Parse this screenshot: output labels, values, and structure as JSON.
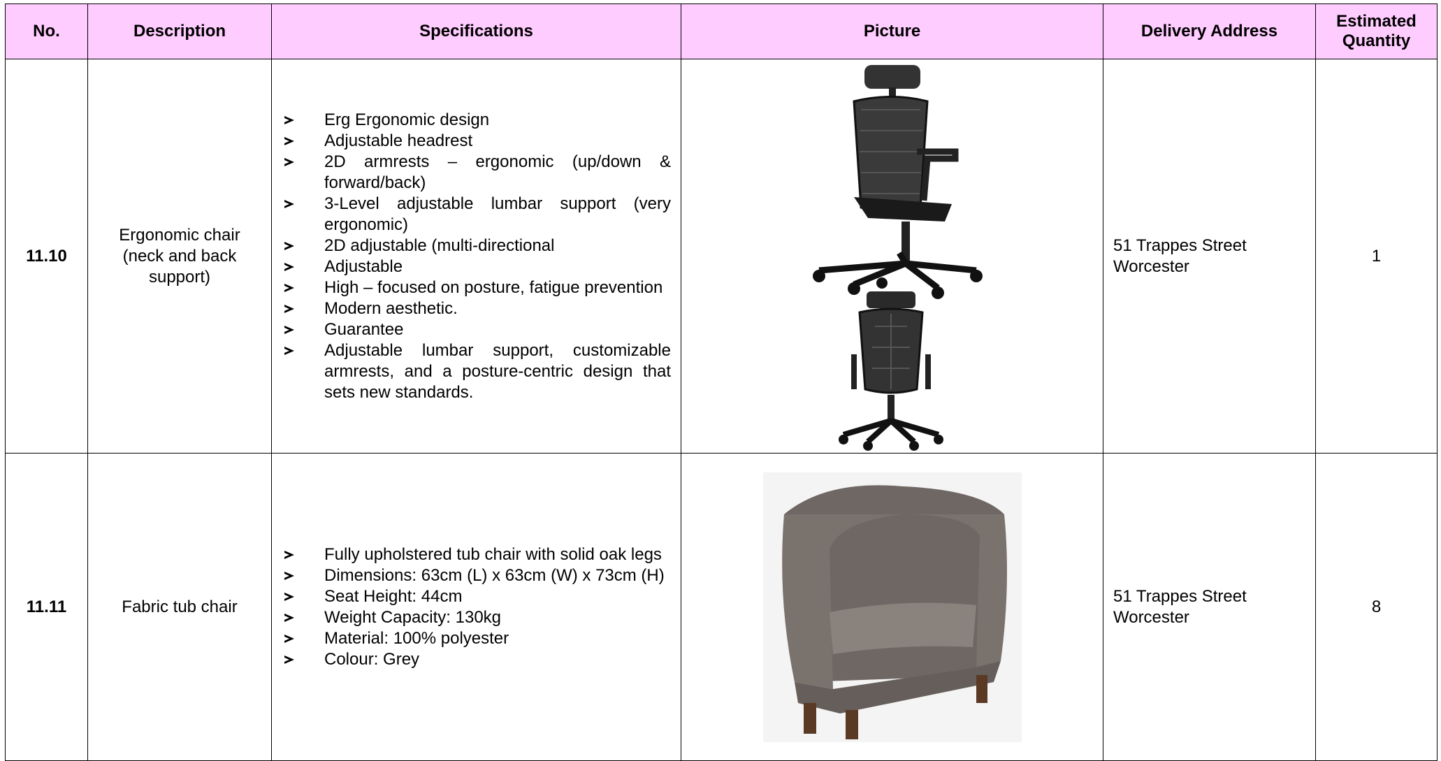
{
  "table": {
    "header": [
      "No.",
      "Description",
      "Specifications",
      "Picture",
      "Delivery Address",
      "Estimated Quantity"
    ],
    "rows": [
      {
        "no": "11.10",
        "description": "Ergonomic chair (neck and back support)",
        "specifications": [
          "Erg Ergonomic design",
          "Adjustable headrest",
          "2D armrests – ergonomic (up/down & forward/back)",
          "3-Level adjustable lumbar support (very ergonomic)",
          "2D adjustable (multi-directional",
          "Adjustable",
          "High – focused on posture, fatigue prevention",
          "Modern aesthetic.",
          "Guarantee",
          "Adjustable lumbar support, customizable armrests, and a posture-centric design that sets new standards."
        ],
        "address": [
          "51 Trappes Street",
          "Worcester"
        ],
        "quantity": 1
      },
      {
        "no": "11.11",
        "description": "Fabric tub chair",
        "specifications": [
          "Fully upholstered tub chair with solid oak legs",
          "Dimensions: 63cm (L) x 63cm (W) x 73cm (H)",
          "Seat Height: 44cm",
          "Weight Capacity: 130kg",
          "Material: 100% polyester",
          "Colour: Grey"
        ],
        "address": [
          "51 Trappes Street",
          "Worcester"
        ],
        "quantity": 8
      }
    ]
  }
}
